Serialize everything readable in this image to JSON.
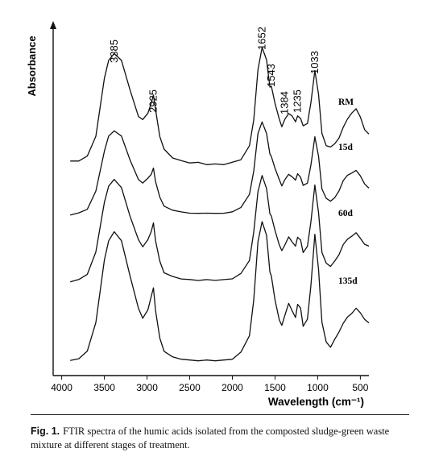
{
  "chart_data": {
    "type": "line",
    "title": "",
    "xlabel": "Wavelength (cm⁻¹)",
    "ylabel": "Absorbance",
    "xlim": [
      4100,
      400
    ],
    "x_reversed": true,
    "x_ticks": [
      "4000",
      "3500",
      "3000",
      "2500",
      "2000",
      "1500",
      "1000",
      "500"
    ],
    "x_tick_values": [
      4000,
      3500,
      3000,
      2500,
      2000,
      1500,
      1000,
      500
    ],
    "grid": false,
    "peak_labels": [
      {
        "text": "3385",
        "x": 3385
      },
      {
        "text": "2925",
        "x": 2925
      },
      {
        "text": "1652",
        "x": 1652
      },
      {
        "text": "1543",
        "x": 1543
      },
      {
        "text": "1384",
        "x": 1384
      },
      {
        "text": "1235",
        "x": 1235
      },
      {
        "text": "1033",
        "x": 1033
      }
    ],
    "series": [
      {
        "name": "RM",
        "x": [
          3900,
          3800,
          3700,
          3600,
          3500,
          3450,
          3385,
          3300,
          3200,
          3100,
          3050,
          2990,
          2950,
          2925,
          2900,
          2850,
          2800,
          2700,
          2600,
          2500,
          2400,
          2300,
          2200,
          2100,
          2000,
          1900,
          1800,
          1750,
          1700,
          1652,
          1600,
          1560,
          1543,
          1500,
          1450,
          1420,
          1384,
          1340,
          1300,
          1260,
          1235,
          1200,
          1170,
          1120,
          1080,
          1033,
          990,
          950,
          900,
          850,
          800,
          750,
          700,
          650,
          600,
          550,
          500,
          450,
          400
        ],
        "y": [
          0.05,
          0.05,
          0.08,
          0.2,
          0.55,
          0.66,
          0.7,
          0.66,
          0.48,
          0.32,
          0.3,
          0.34,
          0.4,
          0.45,
          0.36,
          0.2,
          0.12,
          0.07,
          0.05,
          0.04,
          0.04,
          0.03,
          0.03,
          0.03,
          0.04,
          0.06,
          0.14,
          0.3,
          0.6,
          0.74,
          0.66,
          0.5,
          0.5,
          0.4,
          0.3,
          0.26,
          0.3,
          0.34,
          0.32,
          0.29,
          0.32,
          0.31,
          0.26,
          0.28,
          0.4,
          0.6,
          0.45,
          0.22,
          0.14,
          0.13,
          0.16,
          0.2,
          0.26,
          0.3,
          0.33,
          0.36,
          0.32,
          0.25,
          0.22
        ]
      },
      {
        "name": "15d",
        "x": [
          3900,
          3800,
          3700,
          3600,
          3500,
          3450,
          3385,
          3300,
          3200,
          3100,
          3050,
          2990,
          2950,
          2925,
          2900,
          2850,
          2800,
          2700,
          2600,
          2500,
          2400,
          2300,
          2200,
          2100,
          2000,
          1900,
          1800,
          1750,
          1700,
          1652,
          1600,
          1560,
          1543,
          1500,
          1450,
          1420,
          1384,
          1340,
          1300,
          1260,
          1235,
          1200,
          1170,
          1120,
          1080,
          1033,
          990,
          950,
          900,
          850,
          800,
          750,
          700,
          650,
          600,
          550,
          500,
          450,
          400
        ],
        "y": [
          0.02,
          0.03,
          0.06,
          0.18,
          0.46,
          0.56,
          0.6,
          0.56,
          0.4,
          0.26,
          0.24,
          0.27,
          0.3,
          0.34,
          0.25,
          0.14,
          0.08,
          0.05,
          0.04,
          0.03,
          0.03,
          0.03,
          0.03,
          0.03,
          0.04,
          0.07,
          0.16,
          0.32,
          0.58,
          0.66,
          0.58,
          0.44,
          0.42,
          0.34,
          0.26,
          0.22,
          0.26,
          0.3,
          0.28,
          0.26,
          0.3,
          0.28,
          0.22,
          0.24,
          0.36,
          0.56,
          0.42,
          0.2,
          0.13,
          0.12,
          0.15,
          0.19,
          0.25,
          0.28,
          0.3,
          0.33,
          0.3,
          0.24,
          0.2
        ]
      },
      {
        "name": "60d",
        "x": [
          3900,
          3800,
          3700,
          3600,
          3500,
          3450,
          3385,
          3300,
          3200,
          3100,
          3050,
          2990,
          2950,
          2925,
          2900,
          2850,
          2800,
          2700,
          2600,
          2500,
          2400,
          2300,
          2200,
          2100,
          2000,
          1900,
          1800,
          1750,
          1700,
          1652,
          1600,
          1560,
          1543,
          1500,
          1450,
          1420,
          1384,
          1340,
          1300,
          1260,
          1235,
          1200,
          1170,
          1120,
          1080,
          1033,
          990,
          950,
          900,
          850,
          800,
          750,
          700,
          650,
          600,
          550,
          500,
          450,
          400
        ],
        "y": [
          0.03,
          0.04,
          0.08,
          0.22,
          0.55,
          0.65,
          0.7,
          0.64,
          0.46,
          0.3,
          0.26,
          0.3,
          0.36,
          0.41,
          0.3,
          0.16,
          0.09,
          0.06,
          0.05,
          0.04,
          0.04,
          0.04,
          0.04,
          0.04,
          0.05,
          0.08,
          0.17,
          0.35,
          0.62,
          0.72,
          0.64,
          0.47,
          0.46,
          0.36,
          0.27,
          0.23,
          0.27,
          0.32,
          0.29,
          0.26,
          0.32,
          0.3,
          0.22,
          0.26,
          0.42,
          0.66,
          0.48,
          0.22,
          0.15,
          0.14,
          0.17,
          0.2,
          0.26,
          0.3,
          0.33,
          0.36,
          0.32,
          0.27,
          0.25
        ]
      },
      {
        "name": "135d",
        "x": [
          3900,
          3800,
          3700,
          3600,
          3500,
          3450,
          3385,
          3300,
          3200,
          3100,
          3050,
          2990,
          2950,
          2925,
          2900,
          2850,
          2800,
          2700,
          2600,
          2500,
          2400,
          2300,
          2200,
          2100,
          2000,
          1900,
          1800,
          1750,
          1700,
          1652,
          1600,
          1560,
          1543,
          1500,
          1450,
          1420,
          1384,
          1340,
          1300,
          1260,
          1235,
          1200,
          1170,
          1120,
          1080,
          1033,
          990,
          950,
          900,
          850,
          800,
          750,
          700,
          650,
          600,
          550,
          500,
          450,
          400
        ],
        "y": [
          0.04,
          0.05,
          0.1,
          0.28,
          0.68,
          0.8,
          0.86,
          0.8,
          0.58,
          0.37,
          0.31,
          0.36,
          0.45,
          0.5,
          0.36,
          0.18,
          0.1,
          0.06,
          0.05,
          0.04,
          0.04,
          0.04,
          0.04,
          0.04,
          0.05,
          0.09,
          0.2,
          0.42,
          0.8,
          0.92,
          0.84,
          0.6,
          0.58,
          0.42,
          0.3,
          0.26,
          0.33,
          0.4,
          0.36,
          0.31,
          0.4,
          0.37,
          0.26,
          0.3,
          0.52,
          0.84,
          0.62,
          0.28,
          0.16,
          0.13,
          0.17,
          0.21,
          0.27,
          0.32,
          0.35,
          0.38,
          0.34,
          0.29,
          0.27
        ]
      }
    ]
  },
  "caption": {
    "label": "Fig. 1.",
    "text": "FTIR spectra of the humic acids isolated from the composted sludge-green waste mixture at different stages of treatment."
  }
}
